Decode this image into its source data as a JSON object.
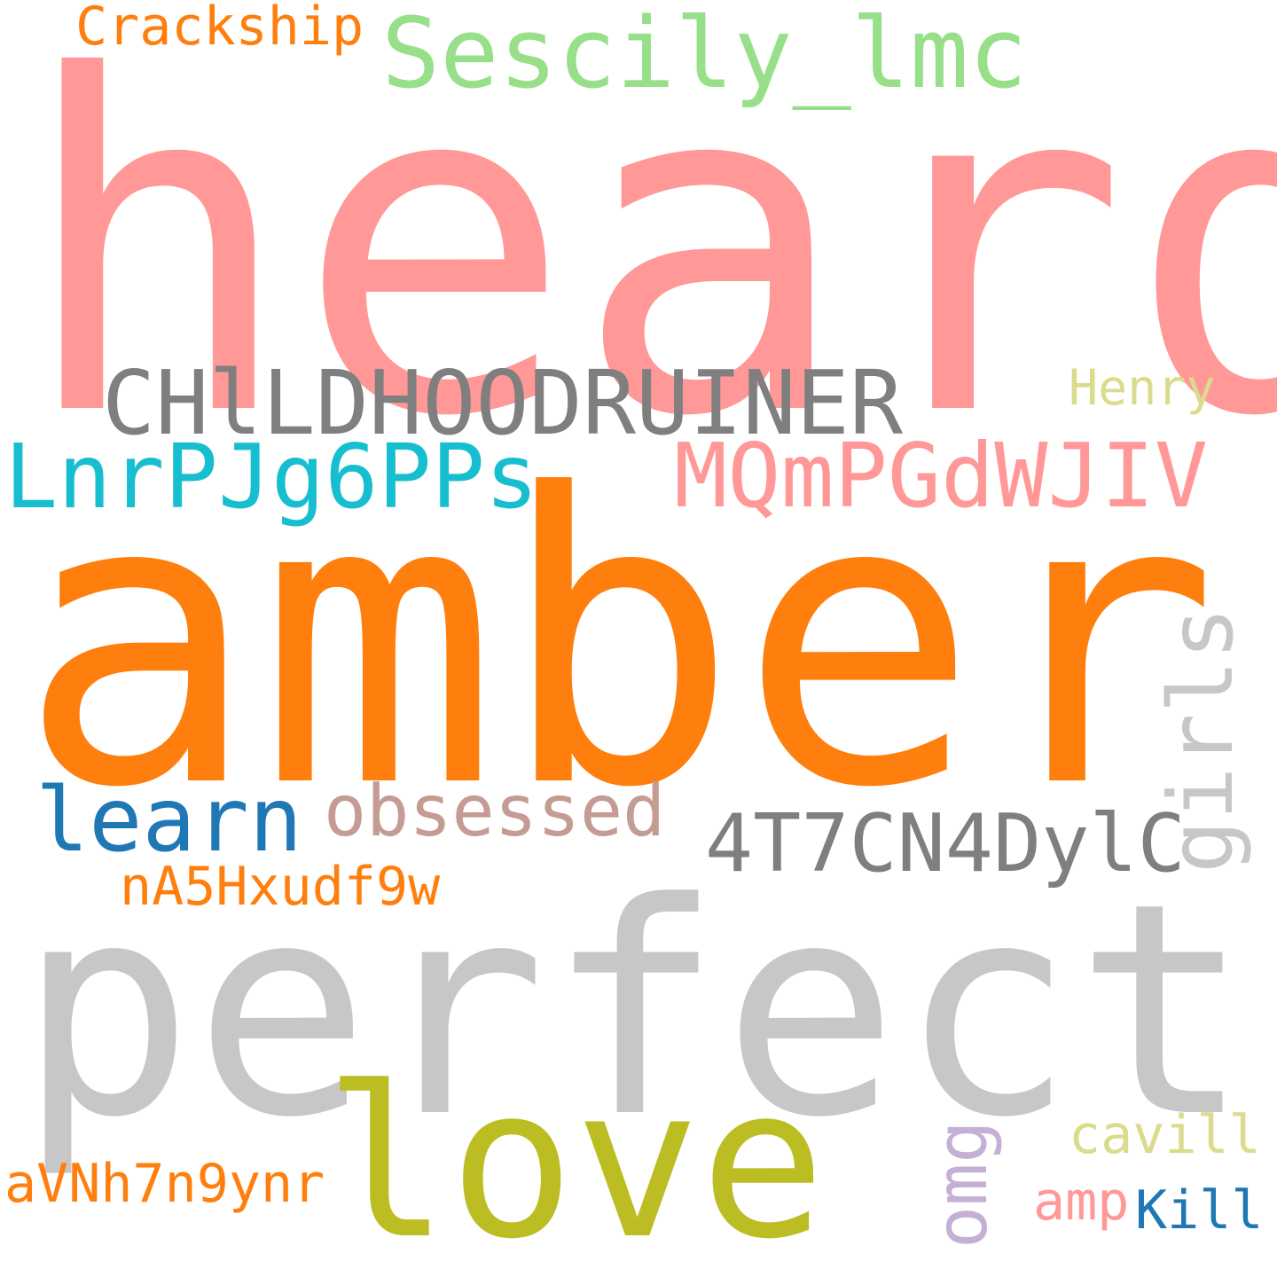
{
  "words": {
    "heard": {
      "text": "heard",
      "color": "#ff9896"
    },
    "amber": {
      "text": "amber",
      "color": "#ff7f0e"
    },
    "perfect": {
      "text": "perfect",
      "color": "#c7c7c7"
    },
    "love": {
      "text": "love",
      "color": "#bcbd22"
    },
    "sescily": {
      "text": "Sescily_lmc",
      "color": "#98df8a"
    },
    "crackship": {
      "text": "Crackship",
      "color": "#ff7f0e"
    },
    "childhood": {
      "text": "CHlLDHOODRUINER",
      "color": "#7f7f7f"
    },
    "henry": {
      "text": "Henry",
      "color": "#dbdb8d"
    },
    "lnrp": {
      "text": "LnrPJg6PPs",
      "color": "#17becf"
    },
    "mqm": {
      "text": "MQmPGdWJIV",
      "color": "#ff9896"
    },
    "learn": {
      "text": "learn",
      "color": "#1f77b4"
    },
    "obsessed": {
      "text": "obsessed",
      "color": "#c49c94"
    },
    "t7": {
      "text": "4T7CN4DylC",
      "color": "#7f7f7f"
    },
    "girls": {
      "text": "girls",
      "color": "#c7c7c7"
    },
    "na5": {
      "text": "nA5Hxudf9w",
      "color": "#ff7f0e"
    },
    "omg": {
      "text": "omg",
      "color": "#c5b0d5"
    },
    "cavill": {
      "text": "cavill",
      "color": "#dbdb8d"
    },
    "avn": {
      "text": "aVNh7n9ynr",
      "color": "#ff7f0e"
    },
    "amp": {
      "text": "amp",
      "color": "#ff9896"
    },
    "kill": {
      "text": "Kill",
      "color": "#1f77b4"
    }
  }
}
